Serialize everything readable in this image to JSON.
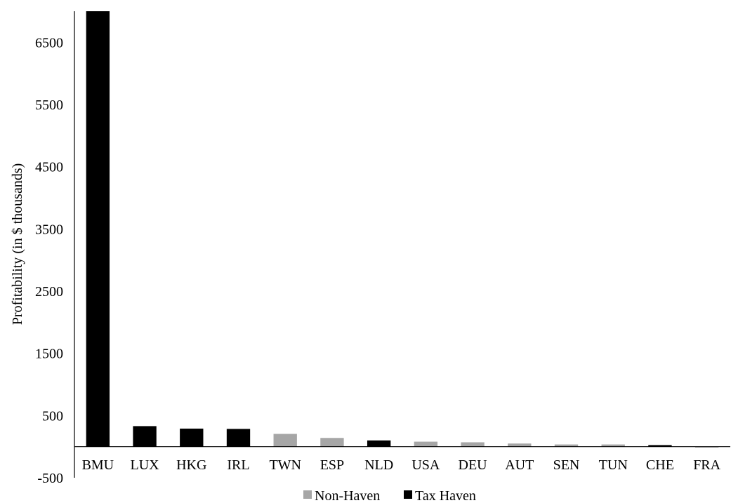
{
  "chart_data": {
    "type": "bar",
    "title": "",
    "xlabel": "",
    "ylabel": "Profitability (in $ thousands)",
    "ylim": [
      -500,
      7000
    ],
    "yticks": [
      -500,
      500,
      1500,
      2500,
      3500,
      4500,
      5500,
      6500
    ],
    "grid": false,
    "legend_position": "bottom",
    "colors": {
      "Non-Haven": "#a6a6a6",
      "Tax Haven": "#000000"
    },
    "legend": [
      "Non-Haven",
      "Tax Haven"
    ],
    "categories": [
      "BMU",
      "LUX",
      "HKG",
      "IRL",
      "TWN",
      "ESP",
      "NLD",
      "USA",
      "DEU",
      "AUT",
      "SEN",
      "TUN",
      "CHE",
      "FRA"
    ],
    "groups": [
      "Tax Haven",
      "Tax Haven",
      "Tax Haven",
      "Tax Haven",
      "Non-Haven",
      "Non-Haven",
      "Tax Haven",
      "Non-Haven",
      "Non-Haven",
      "Non-Haven",
      "Non-Haven",
      "Non-Haven",
      "Tax Haven",
      "Non-Haven"
    ],
    "values": [
      7000,
      330,
      290,
      285,
      205,
      140,
      100,
      80,
      70,
      50,
      35,
      35,
      25,
      -15
    ]
  }
}
